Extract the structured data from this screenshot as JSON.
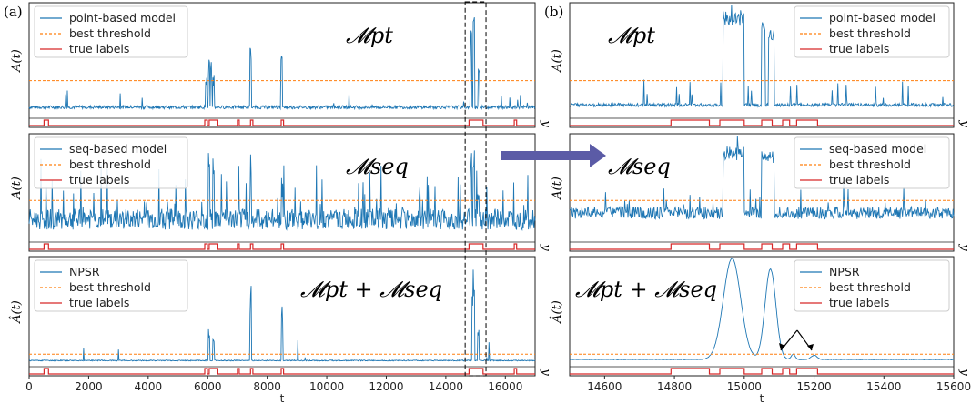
{
  "panel_labels": [
    "(a)",
    "(b)"
  ],
  "colors": {
    "model": "#1f77b4",
    "threshold": "#ff7f0e",
    "labels": "#d62728",
    "arrow": "#5b5ba6"
  },
  "chart_data": [
    {
      "type": "line",
      "panel": "(a)",
      "xlabel": "t",
      "xlim": [
        0,
        17000
      ],
      "x_ticks": [
        "0",
        "2000",
        "4000",
        "6000",
        "8000",
        "10000",
        "12000",
        "14000",
        "16000"
      ],
      "rows": [
        {
          "title": "𝓜pt",
          "ylabel": "A(t)",
          "right_label": "y",
          "ylim": [
            0,
            1
          ],
          "threshold": 0.32,
          "legend": [
            "point-based model",
            "best threshold",
            "true labels"
          ],
          "baseline": 0.08,
          "noise": 0.03,
          "spikes": [
            [
              5950,
              0.45
            ],
            [
              6050,
              0.55
            ],
            [
              6120,
              0.5
            ],
            [
              6200,
              0.42
            ],
            [
              7450,
              0.78
            ],
            [
              8480,
              0.55
            ],
            [
              14850,
              0.85
            ],
            [
              14950,
              0.9
            ],
            [
              15120,
              0.6
            ]
          ],
          "label_segments": [
            [
              500,
              650
            ],
            [
              5900,
              5990
            ],
            [
              6050,
              6340
            ],
            [
              7000,
              7060
            ],
            [
              7440,
              7520
            ],
            [
              8470,
              8550
            ],
            [
              14780,
              15250
            ],
            [
              16300,
              16380
            ]
          ]
        },
        {
          "title": "𝓜seq",
          "ylabel": "A(t)",
          "right_label": "y",
          "ylim": [
            0,
            1
          ],
          "threshold": 0.38,
          "legend": [
            "seq-based model",
            "best threshold",
            "true labels"
          ],
          "baseline": 0.18,
          "noise": 0.2,
          "spikes": [
            [
              6050,
              0.95
            ],
            [
              6200,
              0.75
            ],
            [
              7450,
              0.72
            ],
            [
              8500,
              0.65
            ],
            [
              14850,
              0.9
            ],
            [
              14950,
              0.95
            ],
            [
              15100,
              0.55
            ]
          ],
          "label_segments": [
            [
              500,
              650
            ],
            [
              5900,
              5990
            ],
            [
              6050,
              6340
            ],
            [
              7000,
              7060
            ],
            [
              7440,
              7520
            ],
            [
              8470,
              8550
            ],
            [
              14780,
              15250
            ],
            [
              16300,
              16380
            ]
          ]
        },
        {
          "title": "𝓜pt + 𝓜seq",
          "ylabel": "Â(t)",
          "right_label": "y",
          "ylim": [
            0,
            1
          ],
          "threshold": 0.1,
          "legend": [
            "NPSR",
            "best threshold",
            "true labels"
          ],
          "baseline": 0.04,
          "noise": 0.01,
          "spikes": [
            [
              6050,
              0.35
            ],
            [
              6200,
              0.25
            ],
            [
              7450,
              0.78
            ],
            [
              8500,
              0.55
            ],
            [
              14900,
              0.8
            ],
            [
              14950,
              0.95
            ],
            [
              15100,
              0.45
            ]
          ],
          "label_segments": [
            [
              500,
              650
            ],
            [
              5900,
              5990
            ],
            [
              6050,
              6340
            ],
            [
              7000,
              7060
            ],
            [
              7440,
              7520
            ],
            [
              8470,
              8550
            ],
            [
              14780,
              15250
            ],
            [
              16300,
              16380
            ]
          ]
        }
      ]
    },
    {
      "type": "line",
      "panel": "(b)",
      "xlabel": "t",
      "xlim": [
        14500,
        15600
      ],
      "x_ticks": [
        "14600",
        "14800",
        "15000",
        "15200",
        "15400",
        "15600"
      ],
      "rows": [
        {
          "title": "𝓜pt",
          "ylabel": "A(t)",
          "right_label": "y",
          "ylim": [
            0,
            1
          ],
          "threshold": 0.32,
          "legend": [
            "point-based model",
            "best threshold",
            "true labels"
          ],
          "baseline": 0.1,
          "noise": 0.03,
          "plateaus": [
            [
              14940,
              15000,
              0.95
            ],
            [
              15050,
              15060,
              0.85
            ],
            [
              15070,
              15085,
              0.8
            ]
          ],
          "label_segments": [
            [
              14790,
              14900
            ],
            [
              14930,
              15000
            ],
            [
              15050,
              15080
            ],
            [
              15110,
              15130
            ],
            [
              15150,
              15210
            ]
          ]
        },
        {
          "title": "𝓜seq",
          "ylabel": "A(t)",
          "right_label": "y",
          "ylim": [
            0,
            1
          ],
          "threshold": 0.38,
          "legend": [
            "seq-based model",
            "best threshold",
            "true labels"
          ],
          "baseline": 0.25,
          "noise": 0.12,
          "plateaus": [
            [
              14940,
              15000,
              0.9
            ],
            [
              15050,
              15085,
              0.85
            ]
          ],
          "label_segments": [
            [
              14790,
              14900
            ],
            [
              14930,
              15000
            ],
            [
              15050,
              15080
            ],
            [
              15110,
              15130
            ],
            [
              15150,
              15210
            ]
          ]
        },
        {
          "title": "𝓜pt + 𝓜seq",
          "ylabel": "Â(t)",
          "right_label": "y",
          "ylim": [
            0,
            1
          ],
          "threshold": 0.1,
          "legend": [
            "NPSR",
            "best threshold",
            "true labels"
          ],
          "baseline": 0.05,
          "noise": 0.005,
          "bumps": [
            [
              14965,
              35,
              0.95
            ],
            [
              15075,
              22,
              0.85
            ],
            [
              15140,
              8,
              0.05
            ],
            [
              15200,
              12,
              0.04
            ]
          ],
          "label_segments": [
            [
              14790,
              14900
            ],
            [
              14930,
              15000
            ],
            [
              15050,
              15080
            ],
            [
              15110,
              15130
            ],
            [
              15150,
              15210
            ]
          ]
        }
      ]
    }
  ]
}
